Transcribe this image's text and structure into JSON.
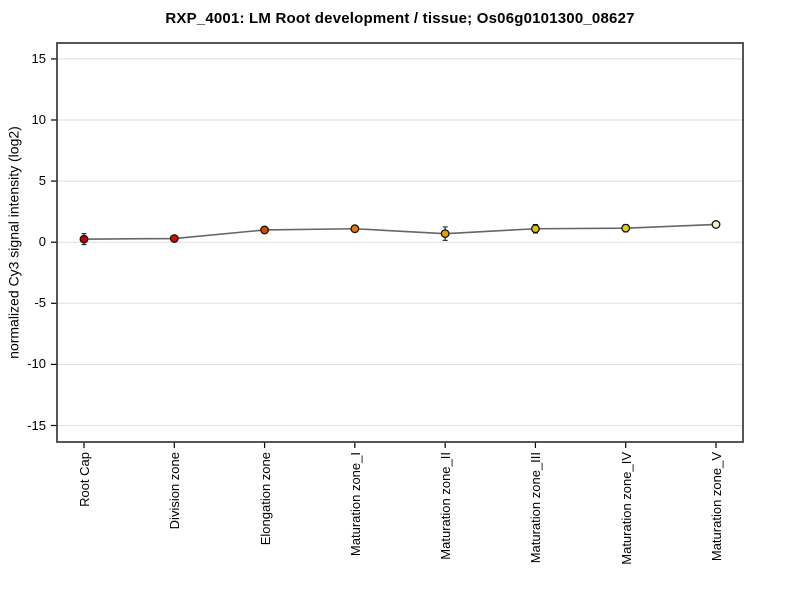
{
  "title": "RXP_4001: LM Root development / tissue; Os06g0101300_08627",
  "chart_data": {
    "type": "line",
    "categories": [
      "Root Cap",
      "Division zone",
      "Elongation zone",
      "Maturation zone_I",
      "Maturation zone_II",
      "Maturation zone_III",
      "Maturation zone_IV",
      "Maturation zone_V"
    ],
    "values": [
      0.25,
      0.3,
      1.0,
      1.1,
      0.7,
      1.1,
      1.15,
      1.45
    ],
    "errors": [
      0.45,
      0.2,
      0.15,
      0.2,
      0.55,
      0.35,
      0.3,
      0.15
    ],
    "point_colors": [
      "#c80000",
      "#c81400",
      "#d24b00",
      "#e67800",
      "#e0a000",
      "#ddc400",
      "#ded200",
      "#efefc8"
    ],
    "title": "RXP_4001: LM Root development / tissue; Os06g0101300_08627",
    "xlabel": "",
    "ylabel": "normalized Cy3 signal intensity (log2)",
    "ylim": [
      -16.35,
      16.3
    ],
    "yticks": [
      15,
      10,
      5,
      0,
      -5,
      -10,
      -15
    ],
    "grid": true,
    "legend": "none",
    "line_color": "#666666",
    "grid_color": "#dddddd",
    "frame_color": "#444444",
    "tick_color": "#000000",
    "error_bar_color": "#111111",
    "point_stroke_color": "#141414"
  }
}
